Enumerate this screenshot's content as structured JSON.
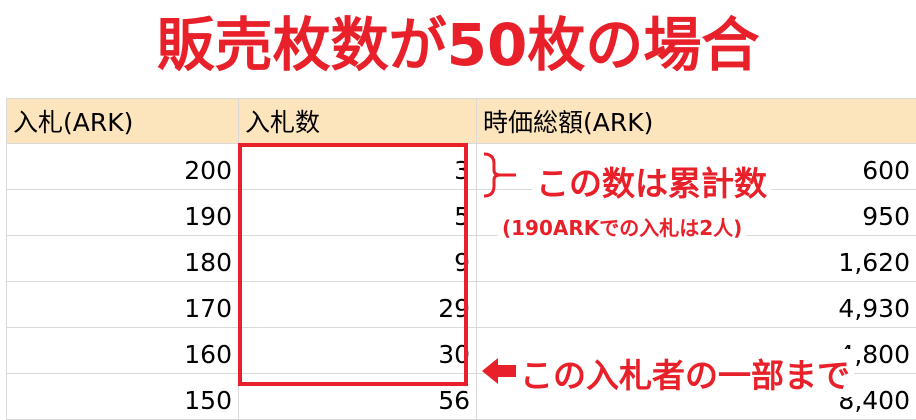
{
  "title": "販売枚数が50枚の場合",
  "table": {
    "headers": [
      "入札(ARK)",
      "入札数",
      "時価総額(ARK)"
    ],
    "rows": [
      [
        "200",
        "3",
        "600"
      ],
      [
        "190",
        "5",
        "950"
      ],
      [
        "180",
        "9",
        "1,620"
      ],
      [
        "170",
        "29",
        "4,930"
      ],
      [
        "160",
        "30",
        "4,800"
      ],
      [
        "150",
        "56",
        "8,400"
      ]
    ]
  },
  "annotations": {
    "cumulative_note": "この数は累計数",
    "detail_note": "(190ARKでの入札は2人)",
    "partial_note": "この入札者の一部まで"
  },
  "colors": {
    "accent": "#e8202a",
    "header_bg": "#fce4bc",
    "grid": "#d9d9d9"
  }
}
